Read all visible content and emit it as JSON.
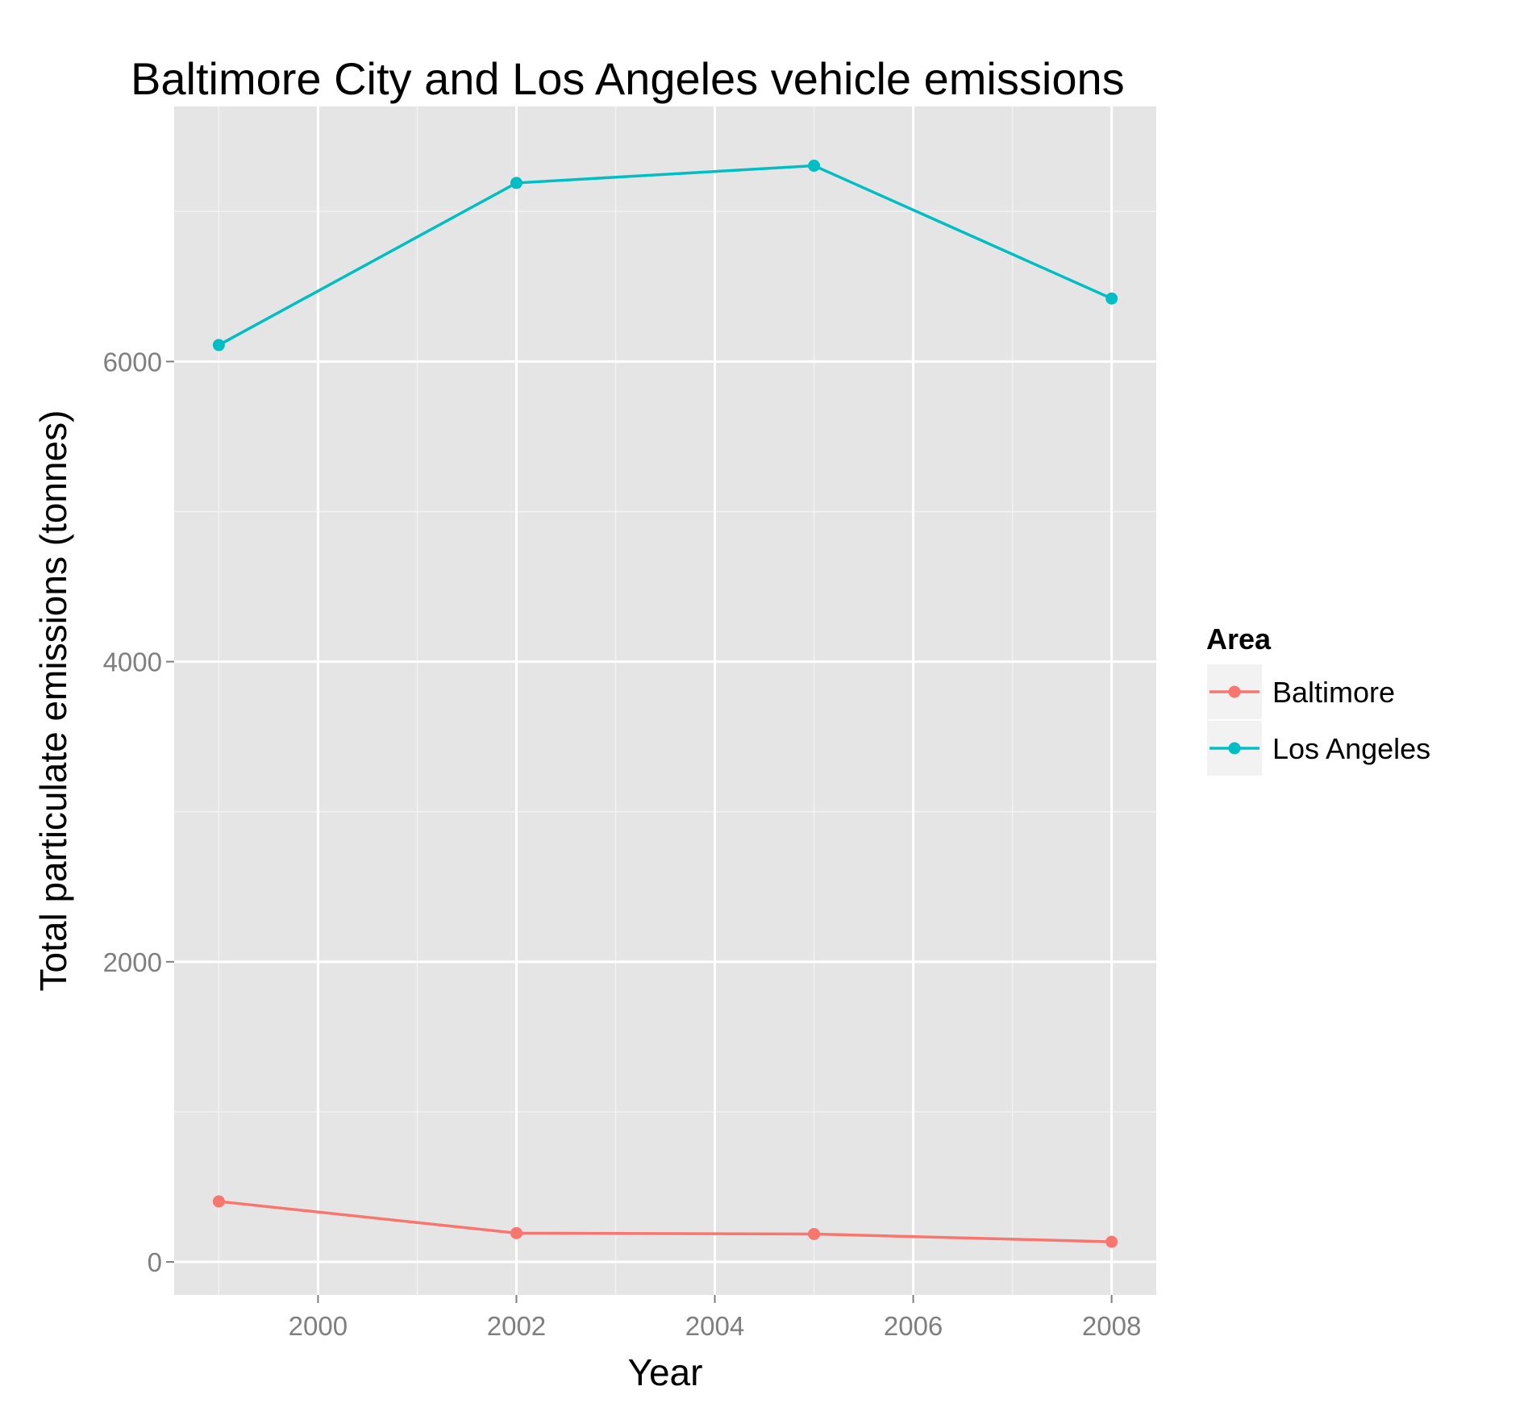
{
  "chart_data": {
    "type": "line",
    "title": "Baltimore City and Los Angeles vehicle emissions",
    "xlabel": "Year",
    "ylabel": "Total particulate emissions (tonnes)",
    "x": [
      1999,
      2002,
      2005,
      2008
    ],
    "xlim": [
      1998.55,
      2008.45
    ],
    "ylim": [
      -220,
      7700
    ],
    "x_ticks": [
      2000,
      2002,
      2004,
      2006,
      2008
    ],
    "x_tick_labels": [
      "2000",
      "2002",
      "2004",
      "2006",
      "2008"
    ],
    "y_ticks": [
      0,
      2000,
      4000,
      6000
    ],
    "y_tick_labels": [
      "0",
      "2000",
      "4000",
      "6000"
    ],
    "grid": true,
    "legend": {
      "title": "Area",
      "position": "right"
    },
    "series": [
      {
        "name": "Baltimore",
        "color": "#F8766D",
        "values": [
          403,
          192,
          186,
          134
        ]
      },
      {
        "name": "Los Angeles",
        "color": "#00BFC4",
        "values": [
          6110,
          7190,
          7305,
          6420
        ]
      }
    ]
  }
}
